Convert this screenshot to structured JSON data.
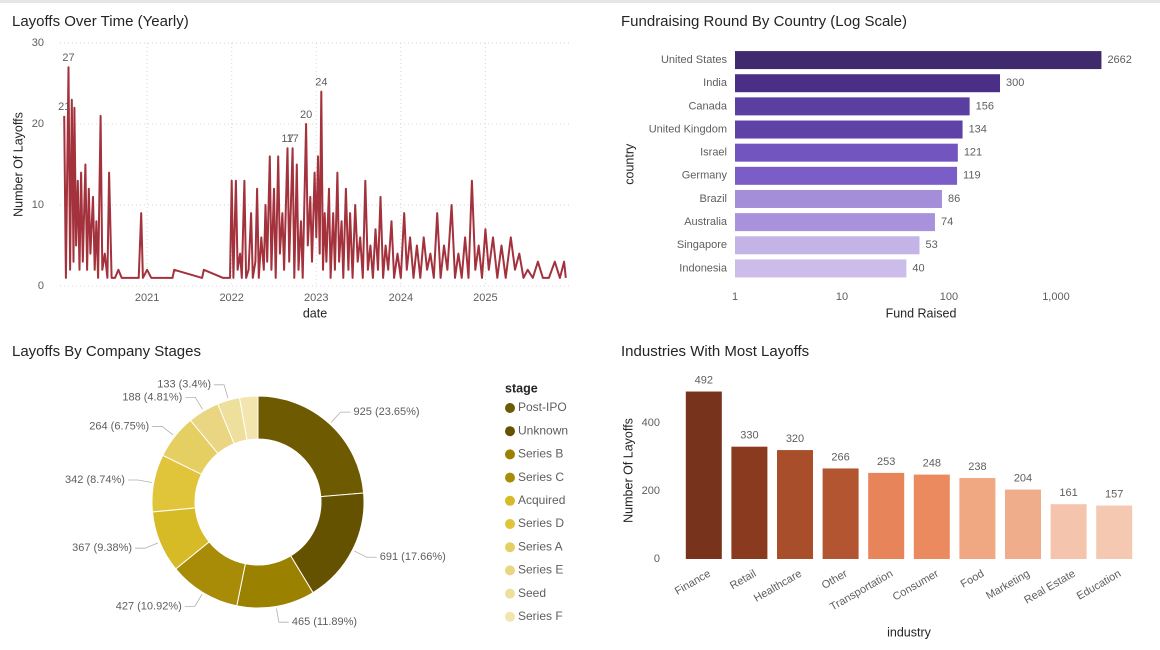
{
  "chart_data": [
    {
      "type": "line",
      "title": "Layoffs Over Time (Yearly)",
      "x_label": "date",
      "y_label": "Number Of Layoffs",
      "color": "#a3323d",
      "grid": true,
      "xlim": [
        2019.97,
        2026.0
      ],
      "xticks": [
        2021,
        2022,
        2023,
        2024,
        2025
      ],
      "ylim": [
        0,
        30
      ],
      "yticks": [
        0,
        10,
        20,
        30
      ],
      "x": [
        2020.02,
        2020.04,
        2020.07,
        2020.09,
        2020.11,
        2020.13,
        2020.14,
        2020.16,
        2020.18,
        2020.2,
        2020.22,
        2020.24,
        2020.27,
        2020.29,
        2020.31,
        2020.33,
        2020.36,
        2020.38,
        2020.4,
        2020.42,
        2020.45,
        2020.47,
        2020.5,
        2020.53,
        2020.55,
        2020.58,
        2020.62,
        2020.66,
        2020.7,
        2020.75,
        2020.9,
        2020.93,
        2020.95,
        2021.0,
        2021.05,
        2021.3,
        2021.32,
        2021.65,
        2021.67,
        2021.9,
        2021.98,
        2022.0,
        2022.02,
        2022.05,
        2022.07,
        2022.1,
        2022.12,
        2022.15,
        2022.17,
        2022.2,
        2022.23,
        2022.25,
        2022.28,
        2022.3,
        2022.32,
        2022.35,
        2022.38,
        2022.4,
        2022.42,
        2022.45,
        2022.47,
        2022.5,
        2022.52,
        2022.55,
        2022.57,
        2022.6,
        2022.62,
        2022.66,
        2022.68,
        2022.72,
        2022.74,
        2022.77,
        2022.79,
        2022.82,
        2022.84,
        2022.88,
        2022.9,
        2022.93,
        2022.95,
        2022.98,
        2023.0,
        2023.02,
        2023.04,
        2023.06,
        2023.08,
        2023.1,
        2023.12,
        2023.15,
        2023.17,
        2023.2,
        2023.22,
        2023.25,
        2023.27,
        2023.3,
        2023.32,
        2023.35,
        2023.38,
        2023.4,
        2023.43,
        2023.46,
        2023.49,
        2023.52,
        2023.55,
        2023.58,
        2023.61,
        2023.64,
        2023.67,
        2023.7,
        2023.73,
        2023.76,
        2023.79,
        2023.82,
        2023.85,
        2023.89,
        2023.92,
        2023.96,
        2024.0,
        2024.04,
        2024.07,
        2024.11,
        2024.15,
        2024.19,
        2024.23,
        2024.27,
        2024.31,
        2024.35,
        2024.39,
        2024.43,
        2024.47,
        2024.51,
        2024.55,
        2024.6,
        2024.64,
        2024.68,
        2024.72,
        2024.76,
        2024.8,
        2024.84,
        2024.88,
        2024.92,
        2024.96,
        2025.0,
        2025.04,
        2025.09,
        2025.14,
        2025.19,
        2025.24,
        2025.3,
        2025.35,
        2025.4,
        2025.45,
        2025.5,
        2025.56,
        2025.62,
        2025.68,
        2025.75,
        2025.82,
        2025.88,
        2025.93,
        2025.95
      ],
      "values": [
        21,
        1,
        27,
        2,
        23,
        3,
        22,
        5,
        13,
        2,
        14,
        3,
        15,
        2,
        12,
        4,
        11,
        2,
        8,
        1,
        21,
        2,
        4,
        1,
        14,
        1,
        1,
        2,
        1,
        1,
        1,
        9,
        1,
        2,
        1,
        1,
        2,
        1,
        2,
        1,
        1,
        13,
        1,
        13,
        2,
        4,
        1,
        13,
        1,
        2,
        9,
        1,
        3,
        12,
        1,
        6,
        2,
        10,
        3,
        16,
        2,
        12,
        1,
        16,
        4,
        9,
        2,
        17,
        3,
        17,
        1,
        15,
        2,
        8,
        1,
        20,
        5,
        11,
        3,
        14,
        6,
        16,
        4,
        24,
        2,
        9,
        3,
        12,
        1,
        9,
        2,
        14,
        3,
        8,
        1,
        12,
        2,
        9,
        1,
        10,
        3,
        6,
        1,
        13,
        2,
        5,
        1,
        7,
        2,
        11,
        1,
        5,
        2,
        8,
        1,
        4,
        1,
        9,
        2,
        6,
        1,
        5,
        1,
        6,
        2,
        4,
        1,
        9,
        1,
        5,
        2,
        10,
        1,
        4,
        1,
        6,
        1,
        13,
        2,
        5,
        1,
        7,
        2,
        6,
        1,
        5,
        1,
        6,
        2,
        4,
        1,
        2,
        1,
        3,
        1,
        1,
        3,
        1,
        3,
        1
      ],
      "value_labels": [
        "21",
        null,
        "27",
        null,
        null,
        null,
        null,
        null,
        null,
        null,
        null,
        null,
        null,
        null,
        null,
        null,
        null,
        null,
        null,
        null,
        null,
        null,
        null,
        null,
        null,
        null,
        null,
        null,
        null,
        null,
        null,
        null,
        null,
        null,
        null,
        null,
        null,
        null,
        null,
        null,
        null,
        null,
        null,
        null,
        null,
        null,
        null,
        null,
        null,
        null,
        null,
        null,
        null,
        null,
        null,
        null,
        null,
        null,
        null,
        null,
        null,
        null,
        null,
        null,
        null,
        null,
        null,
        "17",
        null,
        "17",
        null,
        null,
        null,
        null,
        null,
        "20",
        null,
        null,
        null,
        null,
        null,
        null,
        null,
        "24",
        null,
        null,
        null,
        null,
        null,
        null,
        null,
        null,
        null,
        null,
        null,
        null,
        null,
        null,
        null,
        null,
        null,
        null,
        null,
        null,
        null,
        null,
        null,
        null,
        null,
        null,
        null,
        null,
        null,
        null,
        null,
        null,
        null,
        null,
        null,
        null,
        null,
        null,
        null,
        null,
        null,
        null,
        null,
        null,
        null,
        null,
        null,
        null,
        null,
        null,
        null,
        null,
        null,
        null,
        null,
        null,
        null,
        null,
        null,
        null,
        null,
        null,
        null,
        null,
        null,
        null,
        null,
        null,
        null,
        null,
        null,
        null,
        null,
        null,
        null,
        null
      ]
    },
    {
      "type": "hbar",
      "title": "Fundraising Round By Country (Log Scale)",
      "x_label": "Fund Raised",
      "y_label": "country",
      "x_scale": "log",
      "xlim": [
        1,
        3000
      ],
      "xticks": [
        1,
        10,
        100,
        {
          "value": 1000,
          "label": "1,000"
        }
      ],
      "categories": [
        "United States",
        "India",
        "Canada",
        "United Kingdom",
        "Israel",
        "Germany",
        "Brazil",
        "Australia",
        "Singapore",
        "Indonesia"
      ],
      "values": [
        2662,
        300,
        156,
        134,
        121,
        119,
        86,
        74,
        53,
        40
      ],
      "colors": [
        "#3f2a6e",
        "#4b2f86",
        "#5a3ea0",
        "#5e42a6",
        "#7355c0",
        "#7b5dc8",
        "#a48ed9",
        "#a992dc",
        "#c4b3e6",
        "#cbbcea"
      ]
    },
    {
      "type": "pie",
      "title": "Layoffs By Company Stages",
      "donut": true,
      "legend_title": "stage",
      "legend": "right",
      "categories": [
        "Post-IPO",
        "Unknown",
        "Series B",
        "Series C",
        "Acquired",
        "Series D",
        "Series A",
        "Series E",
        "Seed",
        "Series F"
      ],
      "values": [
        925,
        691,
        465,
        427,
        367,
        342,
        264,
        188,
        133,
        109
      ],
      "value_labels": [
        "925 (23.65%)",
        "691 (17.66%)",
        "465 (11.89%)",
        "427 (10.92%)",
        "367 (9.38%)",
        "342 (8.74%)",
        "264 (6.75%)",
        "188 (4.81%)",
        "133 (3.4%)",
        null
      ],
      "colors": [
        "#6e5a00",
        "#655200",
        "#9a8200",
        "#a88c08",
        "#d6ba26",
        "#e0c43a",
        "#e6cf62",
        "#ead682",
        "#efdf9c",
        "#f2e5ad"
      ]
    },
    {
      "type": "bar",
      "title": "Industries With Most Layoffs",
      "x_label": "industry",
      "y_label": "Number Of Layoffs",
      "grid": false,
      "ylim": [
        0,
        520
      ],
      "yticks": [
        0,
        200,
        400
      ],
      "categories": [
        "Finance",
        "Retail",
        "Healthcare",
        "Other",
        "Transportation",
        "Consumer",
        "Food",
        "Marketing",
        "Real Estate",
        "Education"
      ],
      "values": [
        492,
        330,
        320,
        266,
        253,
        248,
        238,
        204,
        161,
        157
      ],
      "colors": [
        "#77331b",
        "#8a3a1e",
        "#a84e2a",
        "#b35530",
        "#e8845a",
        "#eb8a5e",
        "#f0a882",
        "#f0ad8b",
        "#f5c4ac",
        "#f5c8b2"
      ]
    }
  ]
}
